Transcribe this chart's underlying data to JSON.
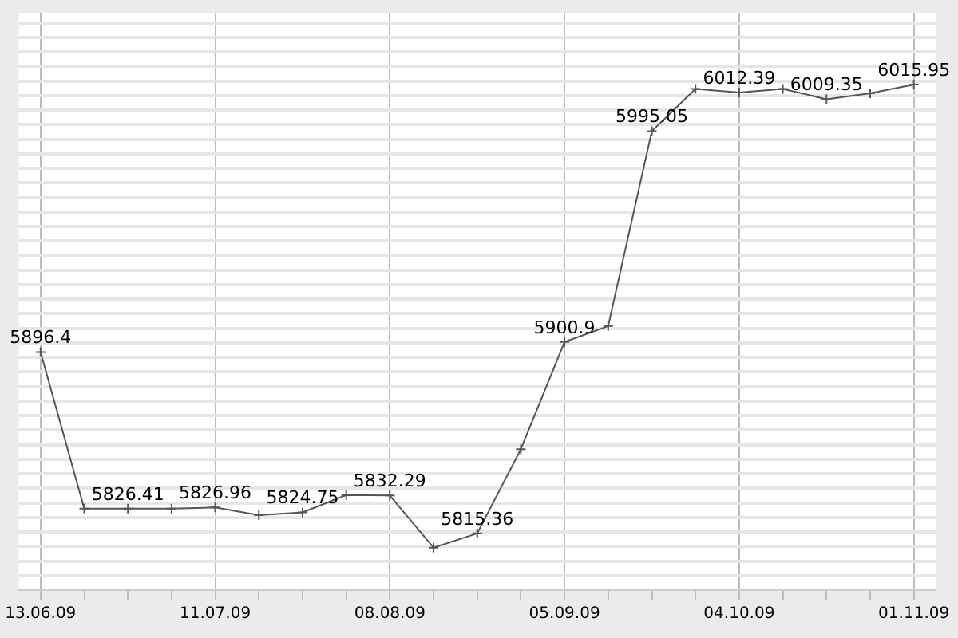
{
  "chart_data": {
    "type": "line",
    "categories": [
      "13.06.09",
      null,
      null,
      null,
      "11.07.09",
      null,
      null,
      null,
      "08.08.09",
      null,
      null,
      null,
      "05.09.09",
      null,
      null,
      null,
      "04.10.09",
      null,
      null,
      null,
      "01.11.09"
    ],
    "series": [
      {
        "color": "#555555",
        "values": [
          5896.4,
          5826.4,
          5826.41,
          5826.4,
          5826.96,
          5823.5,
          5824.75,
          5832.5,
          5832.29,
          5809,
          5815.36,
          5853,
          5900.9,
          5908,
          5995.05,
          6014,
          6012.39,
          6014,
          6009.35,
          6012,
          6015.95
        ],
        "value_labels": [
          "5896.4",
          null,
          "5826.41",
          null,
          "5826.96",
          null,
          "5824.75",
          null,
          "5832.29",
          null,
          "5815.36",
          null,
          "5900.9",
          null,
          "5995.05",
          null,
          "6012.39",
          null,
          "6009.35",
          null,
          "6015.95"
        ]
      }
    ],
    "ylim": [
      5790,
      6048
    ],
    "yticks": [
      {
        "value": 5796.5,
        "label": null
      },
      {
        "value": 5803,
        "label": null
      },
      {
        "value": 5809.5,
        "label": null
      },
      {
        "value": 5816,
        "label": null
      },
      {
        "value": 5822.5,
        "label": null
      },
      {
        "value": 5829,
        "label": null
      },
      {
        "value": 5835.5,
        "label": null
      },
      {
        "value": 5842,
        "label": null
      },
      {
        "value": 5848.5,
        "label": null
      },
      {
        "value": 5855,
        "label": null
      },
      {
        "value": 5861.5,
        "label": null
      },
      {
        "value": 5868,
        "label": null
      },
      {
        "value": 5874.5,
        "label": null
      },
      {
        "value": 5881,
        "label": null
      },
      {
        "value": 5887.5,
        "label": null
      },
      {
        "value": 5894,
        "label": null
      },
      {
        "value": 5900.5,
        "label": null
      },
      {
        "value": 5907,
        "label": null
      },
      {
        "value": 5913.5,
        "label": null
      },
      {
        "value": 5920,
        "label": null
      },
      {
        "value": 5926.5,
        "label": null
      },
      {
        "value": 5933,
        "label": null
      },
      {
        "value": 5939.5,
        "label": null
      },
      {
        "value": 5946,
        "label": null
      },
      {
        "value": 5952.5,
        "label": null
      },
      {
        "value": 5959,
        "label": null
      },
      {
        "value": 5965.5,
        "label": null
      },
      {
        "value": 5972,
        "label": null
      },
      {
        "value": 5978.5,
        "label": null
      },
      {
        "value": 5985,
        "label": null
      },
      {
        "value": 5991.5,
        "label": null
      },
      {
        "value": 5998,
        "label": null
      },
      {
        "value": 6004.5,
        "label": null
      },
      {
        "value": 6011,
        "label": null
      },
      {
        "value": 6017.5,
        "label": null
      },
      {
        "value": 6024,
        "label": null
      },
      {
        "value": 6030.5,
        "label": null
      },
      {
        "value": 6037,
        "label": null
      },
      {
        "value": 6043.5,
        "label": null
      }
    ],
    "grid": true,
    "marker": "cross",
    "line_style": "solid",
    "tick_labels": "x",
    "legend": false
  }
}
